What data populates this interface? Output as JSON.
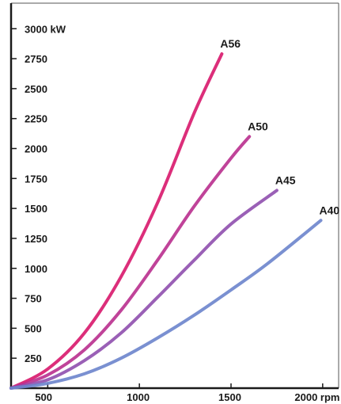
{
  "chart_data": {
    "type": "line",
    "xlim": [
      300,
      2100
    ],
    "ylim": [
      0,
      3200
    ],
    "x_ticks": [
      500,
      1000,
      1500,
      2000
    ],
    "x_tick_labels": [
      "500",
      "1000",
      "1500",
      "2000 rpm"
    ],
    "y_ticks": [
      250,
      500,
      750,
      1000,
      1250,
      1500,
      1750,
      2000,
      2250,
      2500,
      2750,
      3000
    ],
    "y_tick_labels": [
      "250",
      "500",
      "750",
      "1000",
      "1250",
      "1500",
      "1750",
      "2000",
      "2250",
      "2500",
      "2750",
      "3000 kW"
    ],
    "grid": false,
    "legend": "none",
    "series": [
      {
        "name": "A56",
        "color": "#d8176c",
        "x": [
          300,
          500,
          700,
          900,
          1100,
          1300,
          1450
        ],
        "y": [
          0,
          160,
          460,
          930,
          1550,
          2300,
          2790
        ]
      },
      {
        "name": "A50",
        "color": "#b92f8e",
        "x": [
          300,
          500,
          700,
          900,
          1100,
          1300,
          1500,
          1600
        ],
        "y": [
          0,
          110,
          320,
          650,
          1070,
          1520,
          1920,
          2100
        ]
      },
      {
        "name": "A45",
        "color": "#8f4fae",
        "x": [
          300,
          500,
          700,
          900,
          1100,
          1300,
          1500,
          1750
        ],
        "y": [
          0,
          70,
          230,
          460,
          760,
          1070,
          1370,
          1650
        ]
      },
      {
        "name": "A40",
        "color": "#6b84cc",
        "x": [
          300,
          500,
          700,
          900,
          1100,
          1300,
          1500,
          1700,
          1990
        ],
        "y": [
          0,
          40,
          120,
          250,
          420,
          610,
          820,
          1040,
          1400
        ]
      }
    ]
  }
}
